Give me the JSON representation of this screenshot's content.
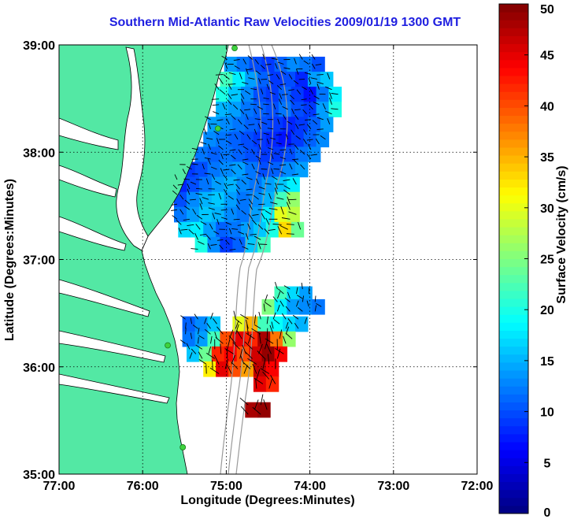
{
  "chart_data": {
    "type": "heatmap",
    "title": "Southern Mid-Atlantic Raw Velocities 2009/01/19 1300 GMT",
    "xlabel": "Longitude (Degrees:Minutes)",
    "ylabel": "Latitude (Degrees:Minutes)",
    "colorbar_label": "Surface Velocity (cm/s)",
    "xlim": [
      -77,
      -72
    ],
    "ylim": [
      35,
      39
    ],
    "x_ticks": [
      {
        "value": -77,
        "label": "77:00"
      },
      {
        "value": -76,
        "label": "76:00"
      },
      {
        "value": -75,
        "label": "75:00"
      },
      {
        "value": -74,
        "label": "74:00"
      },
      {
        "value": -73,
        "label": "73:00"
      },
      {
        "value": -72,
        "label": "72:00"
      }
    ],
    "y_ticks": [
      {
        "value": 39,
        "label": "39:00"
      },
      {
        "value": 38,
        "label": "38:00"
      },
      {
        "value": 37,
        "label": "37:00"
      },
      {
        "value": 36,
        "label": "36:00"
      },
      {
        "value": 35,
        "label": "35:00"
      }
    ],
    "colorbar": {
      "min": 0,
      "max": 50,
      "ticks": [
        {
          "value": 50,
          "label": "50"
        },
        {
          "value": 45,
          "label": "45"
        },
        {
          "value": 40,
          "label": "40"
        },
        {
          "value": 35,
          "label": "35"
        },
        {
          "value": 30,
          "label": "30"
        },
        {
          "value": 25,
          "label": "25"
        },
        {
          "value": 20,
          "label": "20"
        },
        {
          "value": 15,
          "label": "15"
        },
        {
          "value": 10,
          "label": "10"
        },
        {
          "value": 5,
          "label": "5"
        },
        {
          "value": 0,
          "label": "0"
        }
      ]
    },
    "grid": true,
    "colors": {
      "land": "#53e8a4",
      "title": "#1f1fe0",
      "bathymetry": "#9a9a9a",
      "station": "#3ed23e"
    },
    "stations": [
      {
        "lon": -74.9,
        "lat": 38.97
      },
      {
        "lon": -75.1,
        "lat": 38.22
      },
      {
        "lon": -75.7,
        "lat": 36.2
      },
      {
        "lon": -75.52,
        "lat": 35.25
      }
    ],
    "regions": [
      {
        "name": "north",
        "cells": [
          [
            -74.95,
            38.82,
            14
          ],
          [
            -74.8,
            38.82,
            12
          ],
          [
            -74.65,
            38.82,
            10
          ],
          [
            -74.5,
            38.82,
            9
          ],
          [
            -74.35,
            38.82,
            11
          ],
          [
            -74.2,
            38.82,
            13
          ],
          [
            -74.05,
            38.82,
            12
          ],
          [
            -73.9,
            38.82,
            10
          ],
          [
            -75.0,
            38.68,
            22
          ],
          [
            -74.85,
            38.68,
            18
          ],
          [
            -74.7,
            38.68,
            14
          ],
          [
            -74.55,
            38.68,
            11
          ],
          [
            -74.4,
            38.68,
            9
          ],
          [
            -74.25,
            38.68,
            10
          ],
          [
            -74.1,
            38.68,
            8
          ],
          [
            -73.95,
            38.68,
            14
          ],
          [
            -73.8,
            38.68,
            16
          ],
          [
            -75.05,
            38.54,
            20
          ],
          [
            -74.9,
            38.54,
            16
          ],
          [
            -74.75,
            38.54,
            13
          ],
          [
            -74.6,
            38.54,
            10
          ],
          [
            -74.45,
            38.54,
            9
          ],
          [
            -74.3,
            38.54,
            11
          ],
          [
            -74.15,
            38.54,
            9
          ],
          [
            -74.0,
            38.54,
            7
          ],
          [
            -73.85,
            38.54,
            12
          ],
          [
            -73.7,
            38.54,
            18
          ],
          [
            -75.05,
            38.4,
            15
          ],
          [
            -74.9,
            38.4,
            14
          ],
          [
            -74.75,
            38.4,
            12
          ],
          [
            -74.6,
            38.4,
            11
          ],
          [
            -74.45,
            38.4,
            10
          ],
          [
            -74.3,
            38.4,
            12
          ],
          [
            -74.15,
            38.4,
            10
          ],
          [
            -74.0,
            38.4,
            9
          ],
          [
            -73.85,
            38.4,
            14
          ],
          [
            -73.7,
            38.4,
            20
          ],
          [
            -75.15,
            38.26,
            14
          ],
          [
            -75.0,
            38.26,
            13
          ],
          [
            -74.85,
            38.26,
            12
          ],
          [
            -74.7,
            38.26,
            11
          ],
          [
            -74.55,
            38.26,
            10
          ],
          [
            -74.4,
            38.26,
            9
          ],
          [
            -74.25,
            38.26,
            8
          ],
          [
            -74.1,
            38.26,
            9
          ],
          [
            -73.95,
            38.26,
            11
          ],
          [
            -73.8,
            38.26,
            14
          ],
          [
            -75.2,
            38.12,
            13
          ],
          [
            -75.05,
            38.12,
            12
          ],
          [
            -74.9,
            38.12,
            11
          ],
          [
            -74.75,
            38.12,
            10
          ],
          [
            -74.6,
            38.12,
            9
          ],
          [
            -74.45,
            38.12,
            8
          ],
          [
            -74.3,
            38.12,
            7
          ],
          [
            -74.15,
            38.12,
            9
          ],
          [
            -74.0,
            38.12,
            11
          ],
          [
            -73.85,
            38.12,
            13
          ],
          [
            -75.3,
            37.98,
            12
          ],
          [
            -75.15,
            37.98,
            11
          ],
          [
            -75.0,
            37.98,
            12
          ],
          [
            -74.85,
            37.98,
            11
          ],
          [
            -74.7,
            37.98,
            10
          ],
          [
            -74.55,
            37.98,
            9
          ],
          [
            -74.4,
            37.98,
            9
          ],
          [
            -74.25,
            37.98,
            10
          ],
          [
            -74.1,
            37.98,
            12
          ],
          [
            -73.95,
            37.98,
            13
          ],
          [
            -75.45,
            37.84,
            9
          ],
          [
            -75.3,
            37.84,
            10
          ],
          [
            -75.15,
            37.84,
            12
          ],
          [
            -75.0,
            37.84,
            13
          ],
          [
            -74.85,
            37.84,
            14
          ],
          [
            -74.7,
            37.84,
            12
          ],
          [
            -74.55,
            37.84,
            10
          ],
          [
            -74.4,
            37.84,
            11
          ],
          [
            -74.25,
            37.84,
            13
          ],
          [
            -74.1,
            37.84,
            14
          ],
          [
            -75.55,
            37.7,
            8
          ],
          [
            -75.4,
            37.7,
            10
          ],
          [
            -75.25,
            37.7,
            12
          ],
          [
            -75.1,
            37.7,
            14
          ],
          [
            -74.95,
            37.7,
            15
          ],
          [
            -74.8,
            37.7,
            13
          ],
          [
            -74.65,
            37.7,
            12
          ],
          [
            -74.5,
            37.7,
            14
          ],
          [
            -74.35,
            37.7,
            16
          ],
          [
            -74.2,
            37.7,
            18
          ],
          [
            -75.55,
            37.56,
            10
          ],
          [
            -75.4,
            37.56,
            13
          ],
          [
            -75.25,
            37.56,
            15
          ],
          [
            -75.1,
            37.56,
            16
          ],
          [
            -74.95,
            37.56,
            14
          ],
          [
            -74.8,
            37.56,
            12
          ],
          [
            -74.65,
            37.56,
            13
          ],
          [
            -74.5,
            37.56,
            15
          ],
          [
            -74.35,
            37.56,
            22
          ],
          [
            -74.2,
            37.56,
            26
          ],
          [
            -75.55,
            37.42,
            12
          ],
          [
            -75.4,
            37.42,
            14
          ],
          [
            -75.25,
            37.42,
            16
          ],
          [
            -75.1,
            37.42,
            15
          ],
          [
            -74.95,
            37.42,
            13
          ],
          [
            -74.8,
            37.42,
            12
          ],
          [
            -74.65,
            37.42,
            14
          ],
          [
            -74.5,
            37.42,
            18
          ],
          [
            -74.35,
            37.42,
            30
          ],
          [
            -74.2,
            37.42,
            28
          ],
          [
            -75.5,
            37.28,
            17
          ],
          [
            -75.35,
            37.28,
            18
          ],
          [
            -75.2,
            37.28,
            14
          ],
          [
            -75.05,
            37.28,
            11
          ],
          [
            -74.9,
            37.28,
            12
          ],
          [
            -74.75,
            37.28,
            14
          ],
          [
            -74.6,
            37.28,
            16
          ],
          [
            -74.45,
            37.28,
            20
          ],
          [
            -74.3,
            37.28,
            33
          ],
          [
            -74.15,
            37.28,
            24
          ],
          [
            -75.3,
            37.14,
            20
          ],
          [
            -75.15,
            37.14,
            13
          ],
          [
            -75.0,
            37.14,
            9
          ],
          [
            -74.85,
            37.14,
            11
          ],
          [
            -74.7,
            37.14,
            16
          ],
          [
            -74.55,
            37.14,
            22
          ]
        ]
      },
      {
        "name": "south",
        "cells": [
          [
            -74.35,
            36.68,
            22
          ],
          [
            -74.2,
            36.68,
            17
          ],
          [
            -74.05,
            36.68,
            14
          ],
          [
            -74.5,
            36.56,
            25
          ],
          [
            -74.35,
            36.56,
            18
          ],
          [
            -74.2,
            36.56,
            14
          ],
          [
            -74.05,
            36.56,
            13
          ],
          [
            -73.9,
            36.56,
            12
          ],
          [
            -75.45,
            36.4,
            11
          ],
          [
            -75.3,
            36.4,
            13
          ],
          [
            -75.15,
            36.4,
            16
          ],
          [
            -74.85,
            36.4,
            30
          ],
          [
            -74.7,
            36.4,
            35
          ],
          [
            -74.55,
            36.4,
            22
          ],
          [
            -74.4,
            36.4,
            19
          ],
          [
            -74.25,
            36.4,
            17
          ],
          [
            -74.1,
            36.4,
            15
          ],
          [
            -75.45,
            36.26,
            12
          ],
          [
            -75.3,
            36.26,
            14
          ],
          [
            -75.15,
            36.26,
            22
          ],
          [
            -75.0,
            36.26,
            40
          ],
          [
            -74.85,
            36.26,
            45
          ],
          [
            -74.7,
            36.26,
            42
          ],
          [
            -74.55,
            36.26,
            48
          ],
          [
            -74.4,
            36.26,
            38
          ],
          [
            -74.25,
            36.26,
            26
          ],
          [
            -75.4,
            36.12,
            16
          ],
          [
            -75.25,
            36.12,
            24
          ],
          [
            -75.1,
            36.12,
            42
          ],
          [
            -74.95,
            36.12,
            44
          ],
          [
            -74.8,
            36.12,
            40
          ],
          [
            -74.65,
            36.12,
            46
          ],
          [
            -74.5,
            36.12,
            49
          ],
          [
            -74.35,
            36.12,
            44
          ],
          [
            -75.2,
            35.98,
            32
          ],
          [
            -75.05,
            35.98,
            45
          ],
          [
            -74.9,
            35.98,
            40
          ],
          [
            -74.75,
            35.98,
            36
          ],
          [
            -74.6,
            35.98,
            47
          ],
          [
            -74.45,
            35.98,
            44
          ],
          [
            -74.6,
            35.84,
            45
          ],
          [
            -74.45,
            35.84,
            42
          ],
          [
            -74.7,
            35.6,
            48
          ],
          [
            -74.55,
            35.6,
            49
          ]
        ]
      }
    ]
  }
}
